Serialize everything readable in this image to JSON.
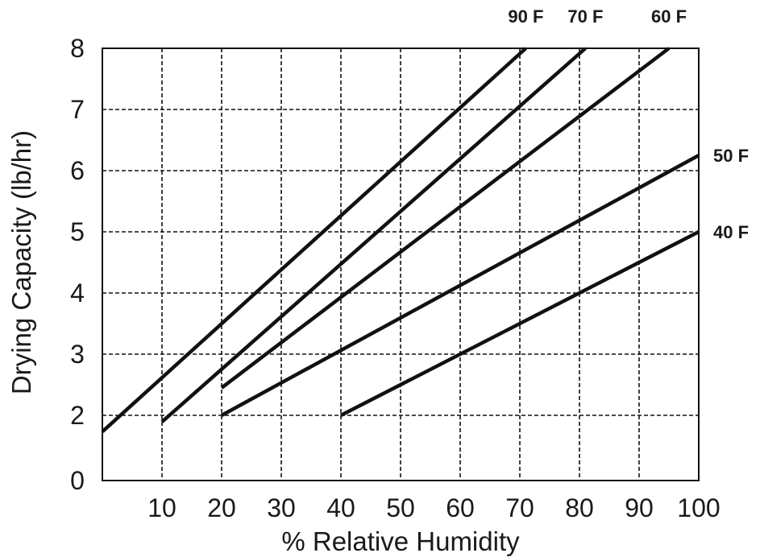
{
  "chart_data": {
    "type": "line",
    "title": "",
    "xlabel": "% Relative Humidity",
    "ylabel": "Drying Capacity (lb/hr)",
    "xlim": [
      0,
      100
    ],
    "x_ticks": [
      10,
      20,
      30,
      40,
      50,
      60,
      70,
      80,
      90,
      100
    ],
    "y_ticks": [
      0,
      2,
      3,
      4,
      5,
      6,
      7,
      8
    ],
    "grid": true,
    "series": [
      {
        "name": "90 F",
        "points": [
          [
            0,
            1.5
          ],
          [
            71,
            8
          ]
        ]
      },
      {
        "name": "70 F",
        "points": [
          [
            10,
            1.8
          ],
          [
            81,
            8
          ]
        ]
      },
      {
        "name": "60 F",
        "points": [
          [
            20,
            2.45
          ],
          [
            95,
            8
          ]
        ]
      },
      {
        "name": "50 F",
        "points": [
          [
            20,
            2.0
          ],
          [
            100,
            6.25
          ]
        ]
      },
      {
        "name": "40 F",
        "points": [
          [
            40,
            2.0
          ],
          [
            100,
            5.0
          ]
        ]
      }
    ]
  }
}
